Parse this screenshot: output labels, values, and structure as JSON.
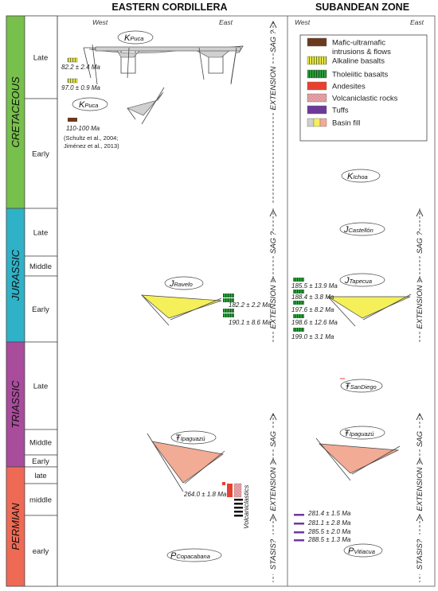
{
  "headers": {
    "eastern_cordillera": "EASTERN CORDILLERA",
    "subandean_zone": "SUBANDEAN ZONE",
    "ec_west": "West",
    "ec_east": "East",
    "sz_west": "West",
    "sz_east": "East"
  },
  "periods": [
    {
      "name": "CRETACEOUS",
      "color": "#77c04b",
      "epochs": [
        {
          "label": "Late"
        },
        {
          "label": "Early"
        }
      ]
    },
    {
      "name": "JURASSIC",
      "color": "#2fb2c7",
      "epochs": [
        {
          "label": "Late"
        },
        {
          "label": "Middle"
        },
        {
          "label": "Early"
        }
      ]
    },
    {
      "name": "TRIASSIC",
      "color": "#a94c9c",
      "epochs": [
        {
          "label": "Late"
        },
        {
          "label": "Middle"
        },
        {
          "label": "Early"
        }
      ]
    },
    {
      "name": "PERMIAN",
      "color": "#ef6a55",
      "epochs": [
        {
          "label": "late"
        },
        {
          "label": "middle"
        },
        {
          "label": "early"
        }
      ]
    }
  ],
  "legend": [
    {
      "label": "Mafic-ultramafic",
      "label2": "intrusions & flows",
      "type": "mafic",
      "color": "#6b3a1e"
    },
    {
      "label": "Alkaline basalts",
      "type": "alkaline",
      "color": "#e8e44a"
    },
    {
      "label": "Tholeiitic basalts",
      "type": "tholeiitic",
      "color": "#2f9a3c"
    },
    {
      "label": "Andesites",
      "type": "andesite",
      "color": "#e8402e"
    },
    {
      "label": "Volcaniclastic rocks",
      "type": "volcaniclastic",
      "color": "#eaa3a8"
    },
    {
      "label": "Tuffs",
      "type": "tuff",
      "color": "#6e3a9a"
    },
    {
      "label": "Basin fill",
      "type": "basinfill",
      "colors": [
        "#cfcfcf",
        "#f5ef5a",
        "#f2ab94"
      ]
    }
  ],
  "ec": {
    "kpuca_upper": {
      "big": "K",
      "small": "Puca"
    },
    "kpuca_lower": {
      "big": "K",
      "small": "Puca"
    },
    "ages_cretaceous": [
      "82.2 ± 2.4 Ma",
      "97.0 ± 0.9 Ma",
      "110-100 Ma"
    ],
    "refs": [
      "(Schultz et al., 2004;",
      "Jiménez et al., 2013)"
    ],
    "jravelo": {
      "big": "J",
      "small": "Ravelo"
    },
    "ages_jurassic": [
      "182.2 ± 2.2 Ma",
      "190.1 ± 8.6 Ma"
    ],
    "tripaguazu": {
      "big": "Ŧ",
      "small": "Ipaguazú"
    },
    "age_permian": "264.0 ± 1.8 Ma",
    "volcaniclastics": "Volcaniclastics",
    "pcopacabana": {
      "big": "P",
      "small": "Copacabana"
    },
    "column_labels": [
      "SAG ?",
      "EXTENSION",
      "SAG ?",
      "EXTENSION",
      "SAG",
      "EXTENSION",
      "STASIS?"
    ]
  },
  "sz": {
    "kichoa": {
      "big": "K",
      "small": "Ichoa"
    },
    "jcastellon": {
      "big": "J",
      "small": "Castellón"
    },
    "jtapecua": {
      "big": "J",
      "small": "Tapecua"
    },
    "ages_jurassic": [
      "185.5 ± 13.9 Ma",
      "188.4 ± 3.8 Ma",
      "197.6 ± 8.2 Ma",
      "198.6 ± 12.6 Ma",
      "199.0 ± 3.1 Ma"
    ],
    "trsandiego": {
      "big": "Ŧ",
      "small": "SanDiego"
    },
    "tripaguazu": {
      "big": "Ŧ",
      "small": "Ipaguazú"
    },
    "ages_permian": [
      "281.4 ± 1.5 Ma",
      "281.1 ± 2.8 Ma",
      "285.5 ± 2.0 Ma",
      "288.5 ± 1.3 Ma"
    ],
    "pvitiacua": {
      "big": "P",
      "small": "Vitiacua"
    },
    "column_labels": [
      "SAG ?",
      "EXTENSION",
      "SAG",
      "EXTENSION",
      "STASIS?"
    ]
  }
}
